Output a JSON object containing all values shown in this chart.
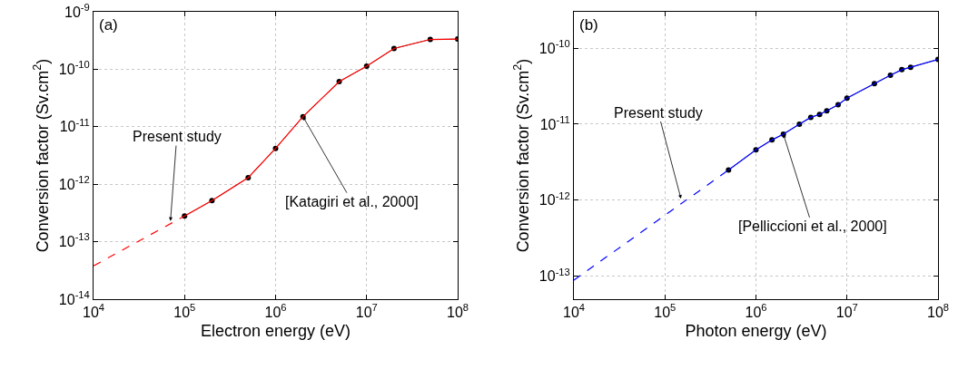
{
  "chart_data": [
    {
      "type": "line",
      "xlabel": "Electron energy (eV)",
      "ylabel": "Conversion factor (Sv.cm$^{2}$)",
      "log": "xy",
      "grid": true,
      "xlim": [
        10000,
        100000000
      ],
      "xticks": [
        {
          "value": 10000,
          "label": "10$^{4}$"
        },
        {
          "value": 100000,
          "label": "10$^{5}$"
        },
        {
          "value": 1000000,
          "label": "10$^{6}$"
        },
        {
          "value": 10000000,
          "label": "10$^{7}$"
        },
        {
          "value": 100000000,
          "label": "10$^{8}$"
        }
      ],
      "ylim": [
        1e-14,
        1e-09
      ],
      "yticks": [
        {
          "value": 1e-14,
          "label": "10$^{-14}$"
        },
        {
          "value": 1e-13,
          "label": "10$^{-13}$"
        },
        {
          "value": 1e-12,
          "label": "10$^{-12}$"
        },
        {
          "value": 1e-11,
          "label": "10$^{-11}$"
        },
        {
          "value": 1e-10,
          "label": "10$^{-10}$"
        },
        {
          "value": 1e-09,
          "label": "10$^{-9}$"
        }
      ],
      "annotations": [
        "(a)",
        {
          "text": "Present study",
          "x": 70000,
          "y": 2.3e-13
        },
        {
          "text": "[Katagiri et al., 2000]",
          "x": 2000000,
          "y": 1.5e-11
        }
      ],
      "series": [
        {
          "color": "#ff0000",
          "line_style": "dashed",
          "x": [
            10000,
            100000
          ],
          "values": [
            3.8e-14,
            2.8e-13
          ]
        },
        {
          "color": "#ff0000",
          "x": [
            100000,
            200000,
            500000,
            1000000,
            2000000,
            5000000,
            10000000,
            20000000,
            50000000,
            100000000
          ],
          "values": [
            2.8e-13,
            5.2e-13,
            1.3e-12,
            4.2e-12,
            1.5e-11,
            6.1e-11,
            1.13e-10,
            2.3e-10,
            3.3e-10,
            3.35e-10
          ]
        },
        {
          "color": "#000000",
          "marker": "circle",
          "x": [
            100000,
            200000,
            500000,
            1000000,
            2000000,
            5000000,
            10000000,
            20000000,
            50000000,
            100000000
          ],
          "values": [
            2.8e-13,
            5.2e-13,
            1.3e-12,
            4.2e-12,
            1.5e-11,
            6.1e-11,
            1.13e-10,
            2.3e-10,
            3.3e-10,
            3.35e-10
          ]
        }
      ]
    },
    {
      "type": "line",
      "xlabel": "Photon energy (eV)",
      "ylabel": "Conversion factor (Sv.cm$^{2}$)",
      "log": "xy",
      "grid": true,
      "xlim": [
        10000,
        100000000
      ],
      "xticks": [
        {
          "value": 10000,
          "label": "10$^{4}$"
        },
        {
          "value": 100000,
          "label": "10$^{5}$"
        },
        {
          "value": 1000000,
          "label": "10$^{6}$"
        },
        {
          "value": 10000000,
          "label": "10$^{7}$"
        },
        {
          "value": 100000000,
          "label": "10$^{8}$"
        }
      ],
      "ylim": [
        5e-14,
        3e-10
      ],
      "yticks": [
        {
          "value": 1e-13,
          "label": "10$^{-13}$"
        },
        {
          "value": 1e-12,
          "label": "10$^{-12}$"
        },
        {
          "value": 1e-11,
          "label": "10$^{-11}$"
        },
        {
          "value": 1e-10,
          "label": "10$^{-10}$"
        }
      ],
      "annotations": [
        "(b)",
        {
          "text": "Present study",
          "x": 150000,
          "y": 1.05e-12
        },
        {
          "text": "[Pelliccioni et al., 2000]",
          "x": 2000000,
          "y": 7.4e-12
        }
      ],
      "series": [
        {
          "color": "#0000ff",
          "line_style": "dashed",
          "x": [
            10000,
            500000
          ],
          "values": [
            8.9e-14,
            2.5e-12
          ]
        },
        {
          "color": "#0000ff",
          "x": [
            500000,
            1000000,
            1500000,
            2000000,
            3000000,
            4000000,
            5000000,
            6000000,
            8000000,
            10000000,
            20000000,
            30000000,
            40000000,
            50000000,
            100000000
          ],
          "values": [
            2.5e-12,
            4.6e-12,
            6.2e-12,
            7.4e-12,
            1e-11,
            1.23e-11,
            1.34e-11,
            1.5e-11,
            1.8e-11,
            2.2e-11,
            3.4e-11,
            4.4e-11,
            5.2e-11,
            5.6e-11,
            7.1e-11
          ]
        },
        {
          "color": "#000000",
          "marker": "circle",
          "x": [
            500000,
            1000000,
            1500000,
            2000000,
            3000000,
            4000000,
            5000000,
            6000000,
            8000000,
            10000000,
            20000000,
            30000000,
            40000000,
            50000000,
            100000000
          ],
          "values": [
            2.5e-12,
            4.6e-12,
            6.2e-12,
            7.4e-12,
            1e-11,
            1.23e-11,
            1.34e-11,
            1.5e-11,
            1.8e-11,
            2.2e-11,
            3.4e-11,
            4.4e-11,
            5.2e-11,
            5.6e-11,
            7.1e-11
          ]
        }
      ]
    }
  ]
}
